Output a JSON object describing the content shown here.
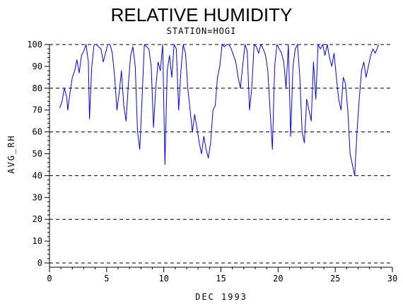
{
  "chart_data": {
    "type": "line",
    "title": "RELATIVE HUMIDITY",
    "subtitle": "STATION=HOGI",
    "xlabel": "DEC 1993",
    "ylabel": "AVG_RH",
    "xlim": [
      0,
      30
    ],
    "ylim": [
      0,
      100
    ],
    "x_ticks": [
      0,
      5,
      10,
      15,
      20,
      25,
      30
    ],
    "y_ticks": [
      0,
      10,
      20,
      30,
      40,
      50,
      60,
      70,
      80,
      90,
      100
    ],
    "gridlines_y": [
      0,
      20,
      40,
      60,
      80,
      100
    ],
    "line_color": "#0000ff",
    "series": [
      {
        "x": [
          0.9,
          1.1,
          1.3,
          1.5,
          1.6,
          1.8,
          2.0,
          2.2,
          2.4,
          2.6,
          2.8,
          3.0,
          3.2,
          3.4,
          3.5,
          3.7,
          3.9,
          4.1,
          4.3,
          4.5,
          4.7,
          4.9,
          5.1,
          5.3,
          5.5,
          5.7,
          5.9,
          6.1,
          6.3,
          6.5,
          6.7,
          6.9,
          7.1,
          7.3,
          7.5,
          7.7,
          7.9,
          8.1,
          8.3,
          8.5,
          8.7,
          8.9,
          9.1,
          9.3,
          9.5,
          9.7,
          9.9,
          10.1,
          10.3,
          10.5,
          10.7,
          10.9,
          11.1,
          11.3,
          11.5,
          11.7,
          11.9,
          12.1,
          12.3,
          12.5,
          12.7,
          12.9,
          13.1,
          13.3,
          13.5,
          13.7,
          13.9,
          14.1,
          14.3,
          14.5,
          14.7,
          14.9,
          15.1,
          15.3,
          15.5,
          15.7,
          15.9,
          16.1,
          16.3,
          16.5,
          16.7,
          16.9,
          17.1,
          17.3,
          17.5,
          17.7,
          17.9,
          18.1,
          18.3,
          18.5,
          18.7,
          18.9,
          19.1,
          19.3,
          19.5,
          19.7,
          19.9,
          20.1,
          20.3,
          20.5,
          20.7,
          20.9,
          21.1,
          21.3,
          21.5,
          21.7,
          21.9,
          22.1,
          22.3,
          22.5,
          22.7,
          22.9,
          23.1,
          23.3,
          23.5,
          23.7,
          23.9,
          24.1,
          24.3,
          24.5,
          24.7,
          24.9,
          25.1,
          25.3,
          25.5,
          25.7,
          25.9,
          26.1,
          26.3,
          26.5,
          26.7,
          26.9,
          27.1,
          27.3,
          27.5,
          27.7,
          27.9,
          28.1,
          28.3,
          28.5,
          28.8
        ],
        "y": [
          71,
          74,
          80,
          76,
          70,
          78,
          85,
          88,
          93,
          87,
          95,
          97,
          100,
          92,
          66,
          90,
          100,
          100,
          99,
          98,
          92,
          96,
          100,
          100,
          96,
          85,
          70,
          78,
          88,
          72,
          65,
          82,
          95,
          99,
          90,
          60,
          52,
          75,
          100,
          99,
          98,
          90,
          62,
          80,
          92,
          88,
          100,
          45,
          88,
          95,
          85,
          100,
          98,
          70,
          88,
          100,
          96,
          80,
          70,
          60,
          68,
          62,
          55,
          50,
          58,
          52,
          48,
          55,
          70,
          72,
          85,
          90,
          100,
          99,
          100,
          100,
          98,
          95,
          92,
          85,
          80,
          90,
          100,
          97,
          70,
          80,
          100,
          99,
          96,
          100,
          98,
          95,
          88,
          70,
          52,
          90,
          100,
          98,
          96,
          92,
          80,
          100,
          58,
          90,
          98,
          100,
          85,
          60,
          55,
          75,
          70,
          65,
          92,
          75,
          100,
          98,
          100,
          95,
          100,
          94,
          90,
          96,
          85,
          75,
          70,
          85,
          82,
          70,
          50,
          45,
          40,
          60,
          75,
          88,
          92,
          85,
          90,
          95,
          98,
          96,
          100
        ]
      }
    ]
  }
}
